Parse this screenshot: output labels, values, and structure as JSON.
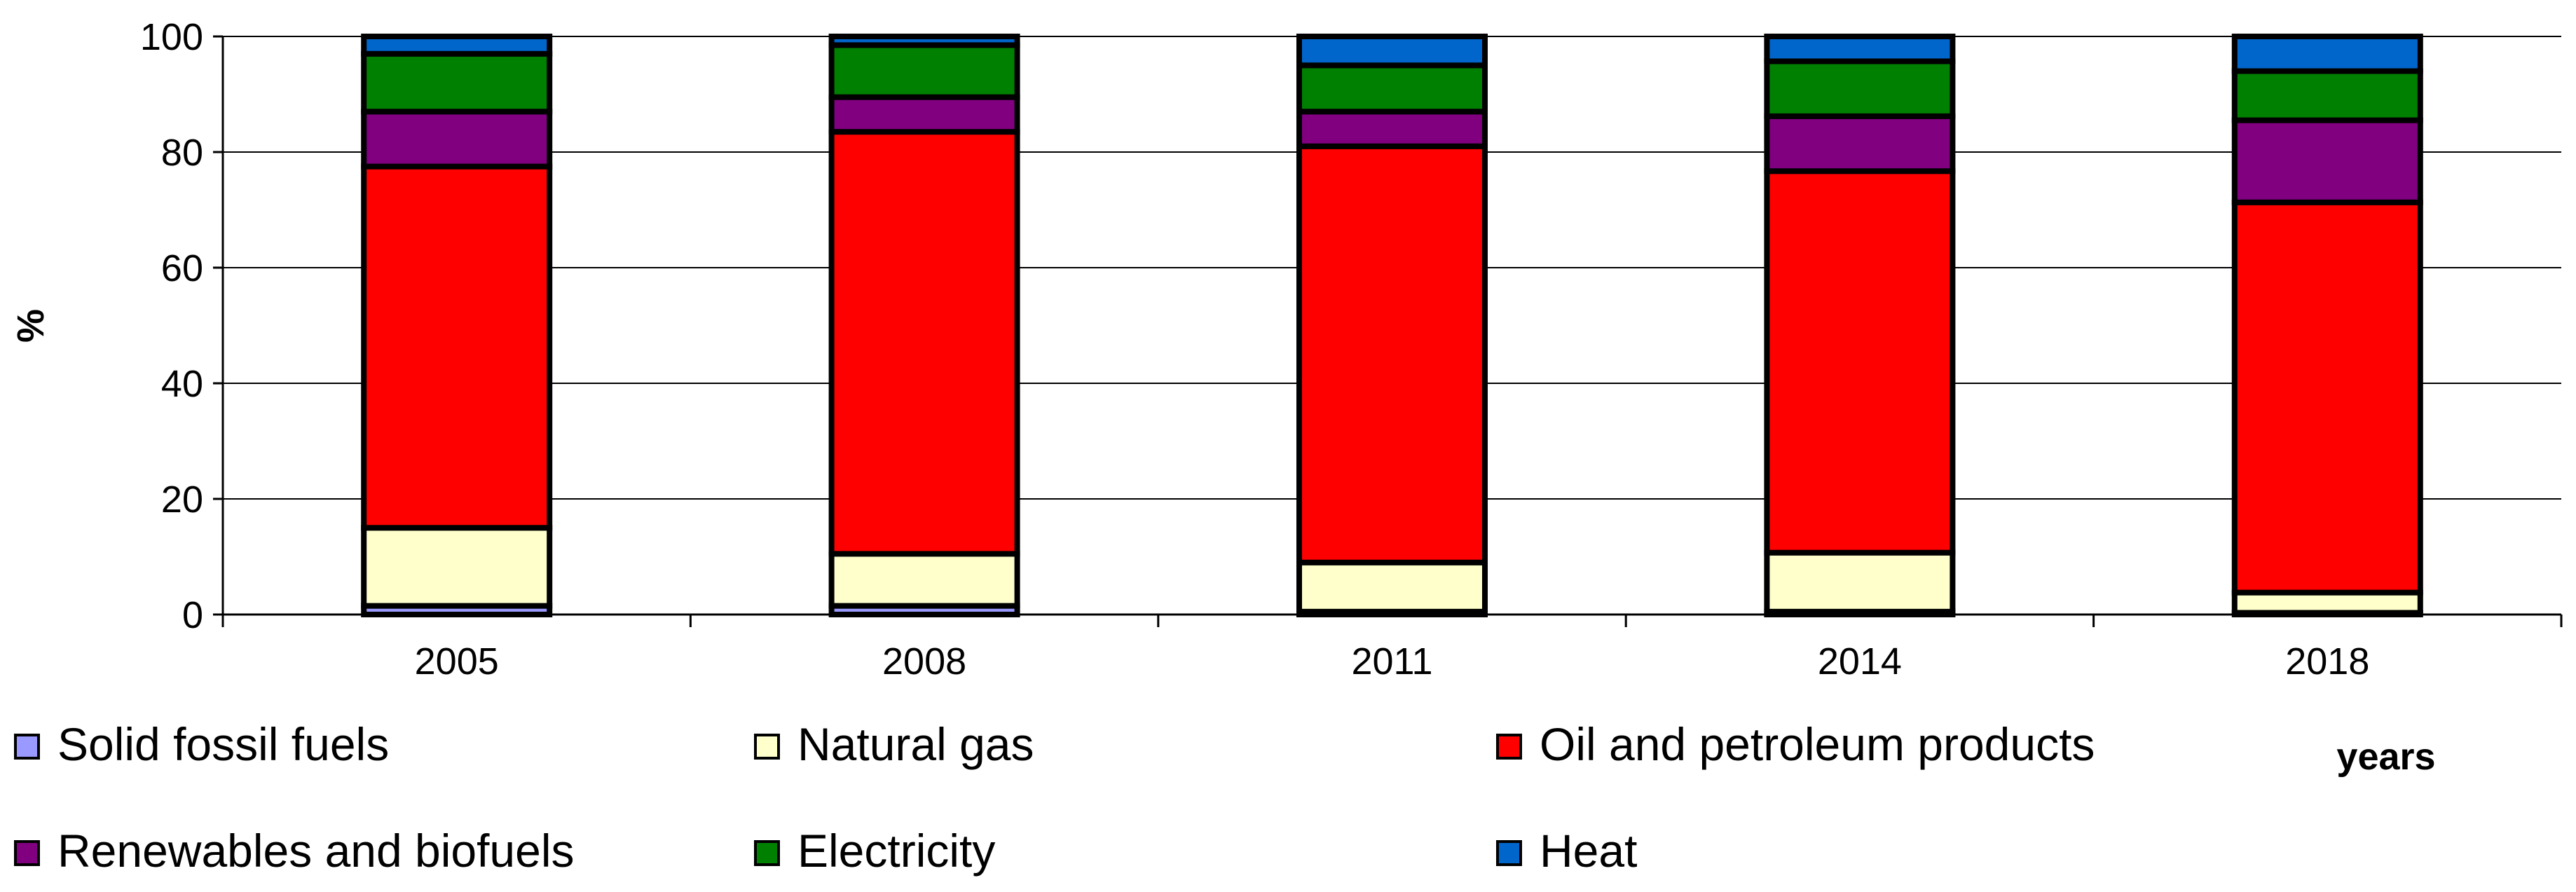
{
  "chart_data": {
    "type": "bar",
    "stacked": true,
    "title": "",
    "xlabel": "years",
    "ylabel": "%",
    "ylim": [
      0,
      100
    ],
    "yticks": [
      0,
      20,
      40,
      60,
      80,
      100
    ],
    "grid": true,
    "legend_position": "bottom",
    "categories": [
      "2005",
      "2008",
      "2011",
      "2014",
      "2018"
    ],
    "series": [
      {
        "name": "Solid fossil fuels",
        "color": "#9999ff",
        "values": [
          1.5,
          1.5,
          0.5,
          0.5,
          0.3
        ]
      },
      {
        "name": "Natural gas",
        "color": "#ffffcc",
        "values": [
          13.5,
          9.0,
          8.5,
          10.2,
          3.5
        ]
      },
      {
        "name": "Oil and petroleum products",
        "color": "#ff0000",
        "values": [
          62.5,
          73.0,
          72.0,
          66.0,
          67.5
        ]
      },
      {
        "name": "Renewables and biofuels",
        "color": "#800080",
        "values": [
          9.5,
          6.0,
          6.0,
          9.5,
          14.2
        ]
      },
      {
        "name": "Electricity",
        "color": "#008000",
        "values": [
          10.0,
          9.0,
          8.0,
          9.5,
          8.5
        ]
      },
      {
        "name": "Heat",
        "color": "#0066cc",
        "values": [
          3.0,
          1.5,
          5.0,
          4.3,
          6.0
        ]
      }
    ]
  }
}
